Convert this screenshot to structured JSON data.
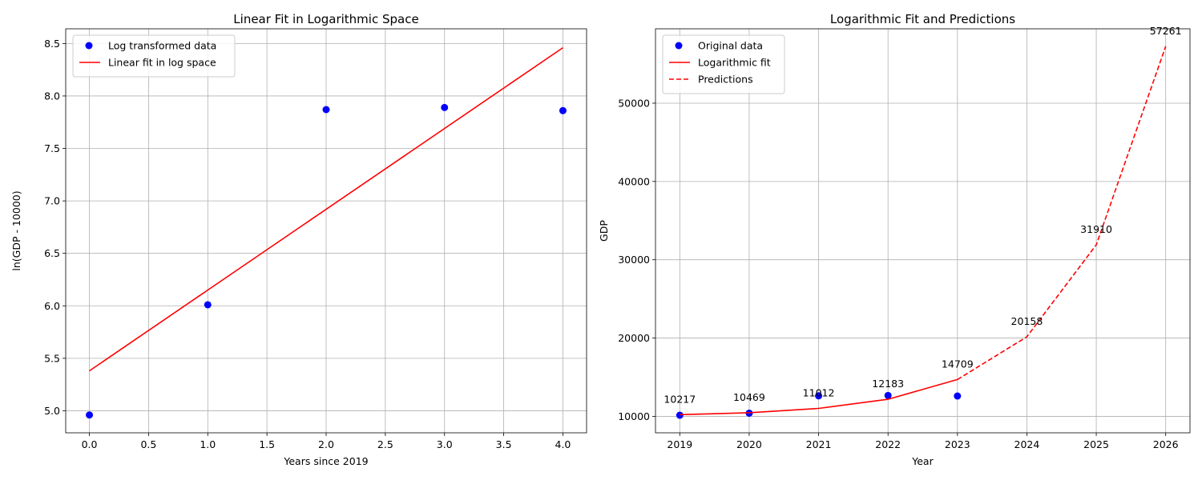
{
  "chart_data": [
    {
      "type": "scatter",
      "title": "Linear Fit in Logarithmic Space",
      "xlabel": "Years since 2019",
      "ylabel": "ln(GDP - 10000)",
      "xlim": [
        -0.2,
        4.2
      ],
      "ylim": [
        4.79,
        8.64
      ],
      "xticks": [
        "0.0",
        "0.5",
        "1.0",
        "1.5",
        "2.0",
        "2.5",
        "3.0",
        "3.5",
        "4.0"
      ],
      "yticks": [
        "5.0",
        "5.5",
        "6.0",
        "6.5",
        "7.0",
        "7.5",
        "8.0",
        "8.5"
      ],
      "grid": true,
      "legend_position": "top-left",
      "series": [
        {
          "name": "Log transformed data",
          "kind": "scatter",
          "color": "#0000ff",
          "x": [
            0,
            1,
            2,
            3,
            4
          ],
          "y": [
            4.96,
            6.01,
            7.87,
            7.89,
            7.86
          ]
        },
        {
          "name": "Linear fit in log space",
          "kind": "line",
          "color": "#ff0000",
          "x": [
            0,
            4
          ],
          "y": [
            5.38,
            8.46
          ]
        }
      ]
    },
    {
      "type": "line",
      "title": "Logarithmic Fit and Predictions",
      "xlabel": "Year",
      "ylabel": "GDP",
      "xlim": [
        2018.65,
        2026.35
      ],
      "ylim": [
        7900,
        59500
      ],
      "xticks": [
        "2019",
        "2020",
        "2021",
        "2022",
        "2023",
        "2024",
        "2025",
        "2026"
      ],
      "yticks": [
        "10000",
        "20000",
        "30000",
        "40000",
        "50000"
      ],
      "grid": true,
      "legend_position": "top-left",
      "series": [
        {
          "name": "Original data",
          "kind": "scatter",
          "color": "#0000ff",
          "x": [
            2019,
            2020,
            2021,
            2022,
            2023
          ],
          "y": [
            10142,
            10408,
            12620,
            12667,
            12598
          ]
        },
        {
          "name": "Logarithmic fit",
          "kind": "line",
          "color": "#ff0000",
          "x": [
            2019,
            2020,
            2021,
            2022,
            2023
          ],
          "y": [
            10217,
            10469,
            11012,
            12183,
            14709
          ]
        },
        {
          "name": "Predictions",
          "kind": "dashed",
          "color": "#ff0000",
          "x": [
            2023,
            2024,
            2025,
            2026
          ],
          "y": [
            14709,
            20158,
            31910,
            57261
          ]
        }
      ],
      "annotations": [
        {
          "x": 2019,
          "y": 10217,
          "text": "10217"
        },
        {
          "x": 2020,
          "y": 10469,
          "text": "10469"
        },
        {
          "x": 2021,
          "y": 11012,
          "text": "11012"
        },
        {
          "x": 2022,
          "y": 12183,
          "text": "12183"
        },
        {
          "x": 2023,
          "y": 14709,
          "text": "14709"
        },
        {
          "x": 2024,
          "y": 20158,
          "text": "20158"
        },
        {
          "x": 2025,
          "y": 31910,
          "text": "31910"
        },
        {
          "x": 2026,
          "y": 57261,
          "text": "57261"
        }
      ]
    }
  ]
}
